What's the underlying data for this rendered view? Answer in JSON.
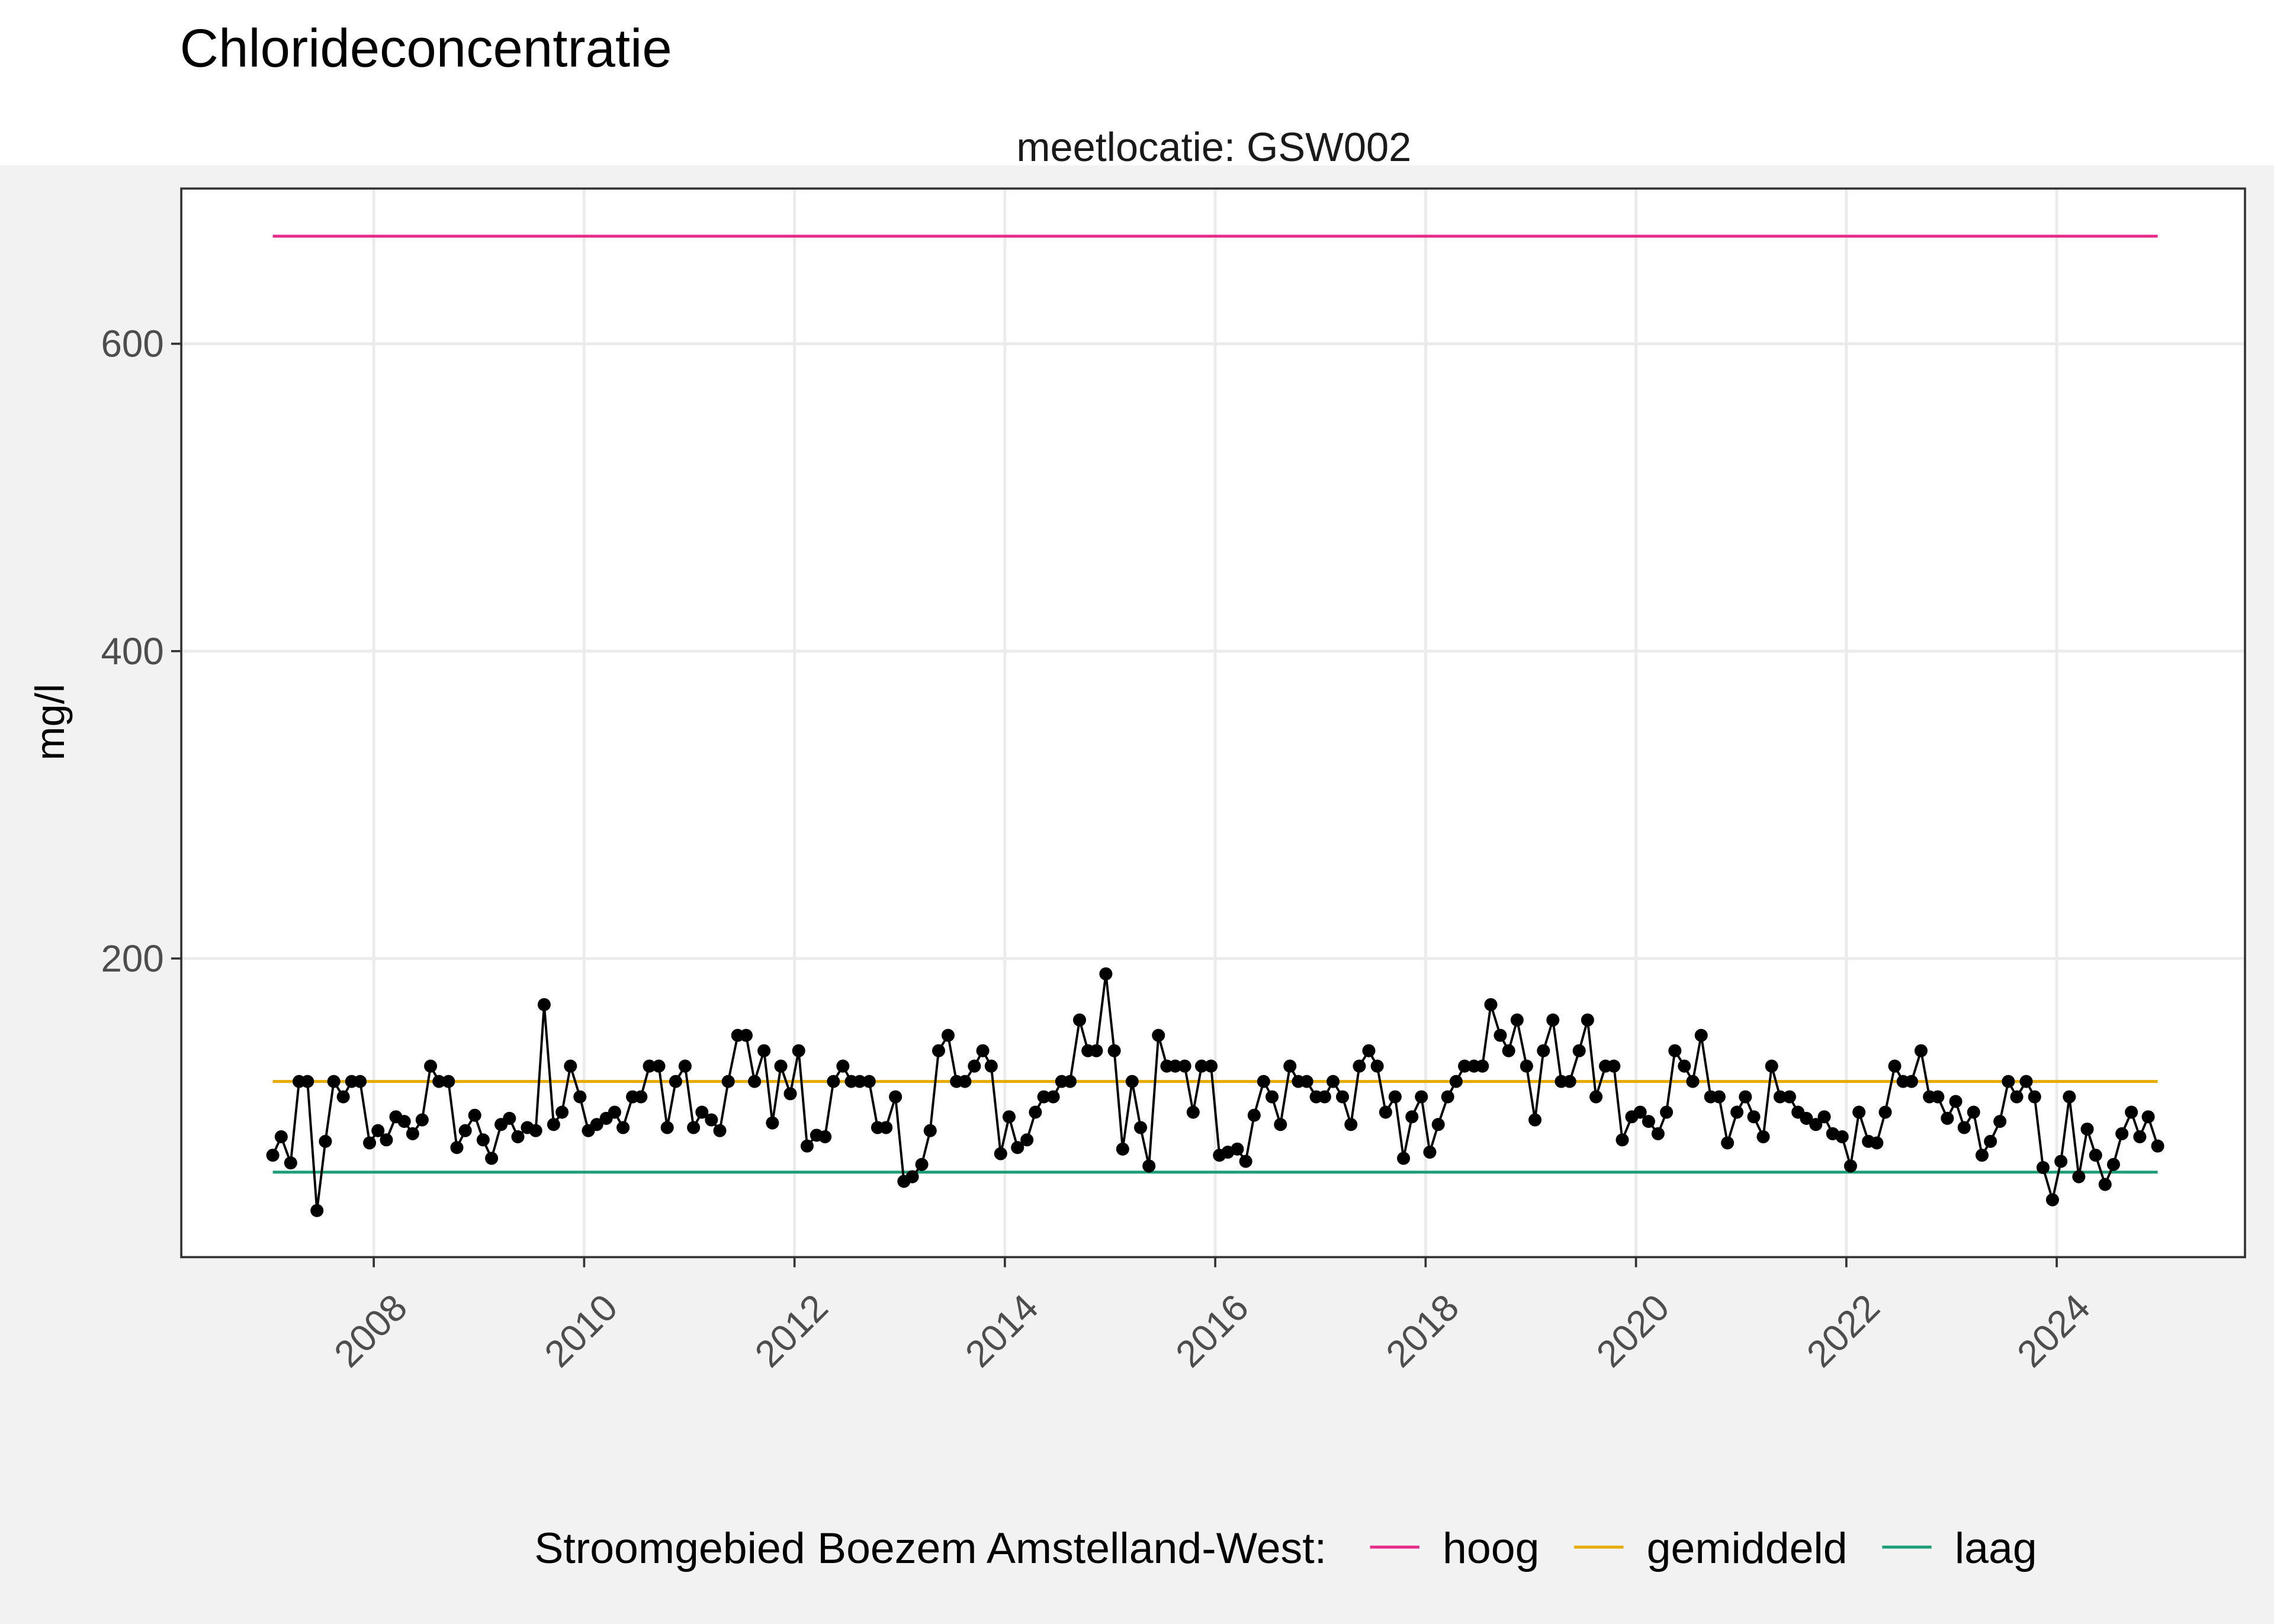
{
  "chart_data": {
    "type": "line",
    "title": "Chlorideconcentratie",
    "subtitle": "meetlocatie: GSW002",
    "ylabel": "mg/l",
    "legend_title": "Stroomgebied Boezem Amstelland-West:",
    "color": "#000000",
    "xlim": [
      2006.17,
      2025.79
    ],
    "ylim": [
      5.7,
      701
    ],
    "xticks": [
      2008,
      2010,
      2012,
      2014,
      2016,
      2018,
      2020,
      2022,
      2024
    ],
    "yticks": [
      200,
      400,
      600
    ],
    "grid": true,
    "legend": "bottom",
    "x": [
      2007.04,
      2007.12,
      2007.21,
      2007.29,
      2007.37,
      2007.46,
      2007.54,
      2007.62,
      2007.71,
      2007.79,
      2007.87,
      2007.96,
      2008.04,
      2008.12,
      2008.21,
      2008.29,
      2008.37,
      2008.46,
      2008.54,
      2008.62,
      2008.71,
      2008.79,
      2008.87,
      2008.96,
      2009.04,
      2009.12,
      2009.21,
      2009.29,
      2009.37,
      2009.46,
      2009.54,
      2009.62,
      2009.71,
      2009.79,
      2009.87,
      2009.96,
      2010.04,
      2010.12,
      2010.21,
      2010.29,
      2010.37,
      2010.46,
      2010.54,
      2010.62,
      2010.71,
      2010.79,
      2010.87,
      2010.96,
      2011.04,
      2011.12,
      2011.21,
      2011.29,
      2011.37,
      2011.46,
      2011.54,
      2011.62,
      2011.71,
      2011.79,
      2011.87,
      2011.96,
      2012.04,
      2012.12,
      2012.21,
      2012.29,
      2012.37,
      2012.46,
      2012.54,
      2012.62,
      2012.71,
      2012.79,
      2012.87,
      2012.96,
      2013.04,
      2013.12,
      2013.21,
      2013.29,
      2013.37,
      2013.46,
      2013.54,
      2013.62,
      2013.71,
      2013.79,
      2013.87,
      2013.96,
      2014.04,
      2014.12,
      2014.21,
      2014.29,
      2014.37,
      2014.46,
      2014.54,
      2014.62,
      2014.71,
      2014.79,
      2014.87,
      2014.96,
      2015.04,
      2015.12,
      2015.21,
      2015.29,
      2015.37,
      2015.46,
      2015.54,
      2015.62,
      2015.71,
      2015.79,
      2015.87,
      2015.96,
      2016.04,
      2016.12,
      2016.21,
      2016.29,
      2016.37,
      2016.46,
      2016.54,
      2016.62,
      2016.71,
      2016.79,
      2016.87,
      2016.96,
      2017.04,
      2017.12,
      2017.21,
      2017.29,
      2017.37,
      2017.46,
      2017.54,
      2017.62,
      2017.71,
      2017.79,
      2017.87,
      2017.96,
      2018.04,
      2018.12,
      2018.21,
      2018.29,
      2018.37,
      2018.46,
      2018.54,
      2018.62,
      2018.71,
      2018.79,
      2018.87,
      2018.96,
      2019.04,
      2019.12,
      2019.21,
      2019.29,
      2019.37,
      2019.46,
      2019.54,
      2019.62,
      2019.71,
      2019.79,
      2019.87,
      2019.96,
      2020.04,
      2020.12,
      2020.21,
      2020.29,
      2020.37,
      2020.46,
      2020.54,
      2020.62,
      2020.71,
      2020.79,
      2020.87,
      2020.96,
      2021.04,
      2021.12,
      2021.21,
      2021.29,
      2021.37,
      2021.46,
      2021.54,
      2021.62,
      2021.71,
      2021.79,
      2021.87,
      2021.96,
      2022.04,
      2022.12,
      2022.21,
      2022.29,
      2022.37,
      2022.46,
      2022.54,
      2022.62,
      2022.71,
      2022.79,
      2022.87,
      2022.96,
      2023.04,
      2023.12,
      2023.21,
      2023.29,
      2023.37,
      2023.46,
      2023.54,
      2023.62,
      2023.71,
      2023.79,
      2023.87,
      2023.96,
      2024.04,
      2024.12,
      2024.21,
      2024.29,
      2024.37,
      2024.46,
      2024.54,
      2024.62,
      2024.71,
      2024.79,
      2024.87,
      2024.96
    ],
    "values": [
      72,
      84,
      67,
      120,
      120,
      36,
      81,
      120,
      110,
      120,
      120,
      80,
      88,
      82,
      97,
      94,
      86,
      95,
      130,
      120,
      120,
      77,
      88,
      98,
      82,
      70,
      92,
      96,
      84,
      90,
      88,
      170,
      92,
      100,
      130,
      110,
      88,
      92,
      96,
      100,
      90,
      110,
      110,
      130,
      130,
      90,
      120,
      130,
      90,
      100,
      95,
      88,
      120,
      150,
      150,
      120,
      140,
      93,
      130,
      112,
      140,
      78,
      85,
      84,
      120,
      130,
      120,
      120,
      120,
      90,
      90,
      110,
      55,
      58,
      66,
      88,
      140,
      150,
      120,
      120,
      130,
      140,
      130,
      73,
      97,
      77,
      82,
      100,
      110,
      110,
      120,
      120,
      160,
      140,
      140,
      190,
      140,
      76,
      120,
      90,
      65,
      150,
      130,
      130,
      130,
      100,
      130,
      130,
      72,
      74,
      76,
      68,
      98,
      120,
      110,
      92,
      130,
      120,
      120,
      110,
      110,
      120,
      110,
      92,
      130,
      140,
      130,
      100,
      110,
      70,
      97,
      110,
      74,
      92,
      110,
      120,
      130,
      130,
      130,
      170,
      150,
      140,
      160,
      130,
      95,
      140,
      160,
      120,
      120,
      140,
      160,
      110,
      130,
      130,
      82,
      97,
      100,
      94,
      86,
      100,
      140,
      130,
      120,
      150,
      110,
      110,
      80,
      100,
      110,
      97,
      84,
      130,
      110,
      110,
      100,
      96,
      92,
      97,
      86,
      84,
      65,
      100,
      81,
      80,
      100,
      130,
      120,
      120,
      140,
      110,
      110,
      96,
      107,
      90,
      100,
      72,
      81,
      94,
      120,
      110,
      120,
      110,
      64,
      43,
      68,
      110,
      58,
      89,
      72,
      53,
      66,
      86,
      100,
      84,
      97,
      78
    ],
    "series": [
      {
        "name": "hoog",
        "color": "#e7298a",
        "x": [
          2007.04,
          2024.96
        ],
        "values": [
          670,
          670
        ]
      },
      {
        "name": "gemiddeld",
        "color": "#e6ab02",
        "x": [
          2007.04,
          2024.96
        ],
        "values": [
          120,
          120
        ]
      },
      {
        "name": "laag",
        "color": "#1b9e77",
        "x": [
          2007.04,
          2024.96
        ],
        "values": [
          61,
          61
        ]
      }
    ]
  }
}
